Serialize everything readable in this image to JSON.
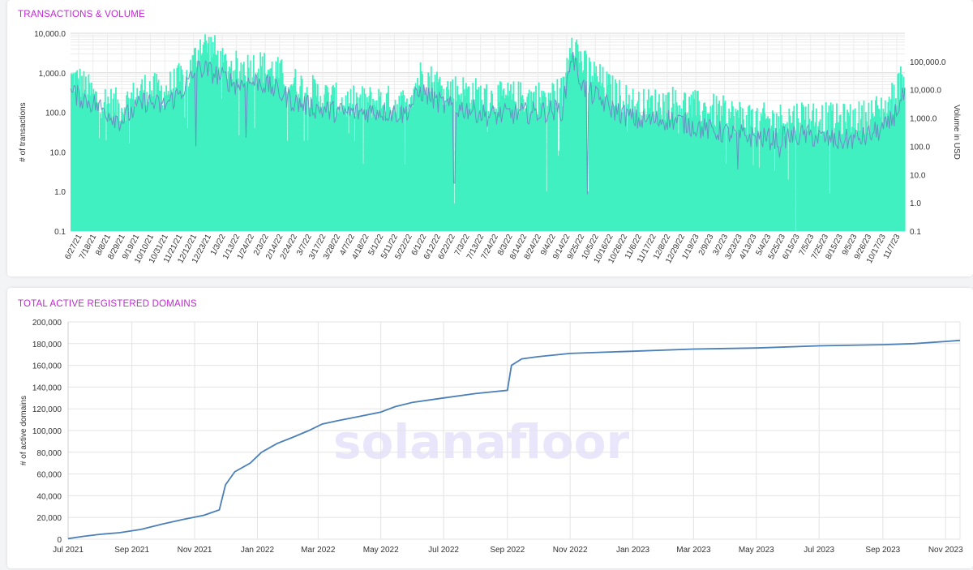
{
  "chart_data": [
    {
      "type": "bar",
      "title": "TRANSACTIONS & VOLUME",
      "ylabel": "# of transactions",
      "y2label": "Volume in USD",
      "yscale": "log",
      "ylim": [
        0.1,
        10000
      ],
      "y2scale": "log",
      "y2lim": [
        0.1,
        1000000
      ],
      "yticks": [
        "0.1",
        "1.0",
        "10.0",
        "100.0",
        "1,000.0",
        "10,000.0"
      ],
      "y2ticks": [
        "0.1",
        "1.0",
        "10.0",
        "100.0",
        "1,000.0",
        "10,000.0",
        "100,000.0"
      ],
      "xticks": [
        "6/27/21",
        "7/18/21",
        "8/8/21",
        "8/29/21",
        "9/19/21",
        "10/10/21",
        "10/31/21",
        "11/21/21",
        "12/12/21",
        "12/23/21",
        "1/3/22",
        "1/13/22",
        "1/24/22",
        "2/3/22",
        "2/14/22",
        "2/24/22",
        "3/7/22",
        "3/17/22",
        "3/28/22",
        "4/7/22",
        "4/18/22",
        "5/1/22",
        "5/11/22",
        "5/22/22",
        "6/1/22",
        "6/12/22",
        "6/22/22",
        "7/3/22",
        "7/13/22",
        "7/24/22",
        "8/3/22",
        "8/14/22",
        "8/24/22",
        "9/4/22",
        "9/14/22",
        "9/25/22",
        "10/5/22",
        "10/16/22",
        "10/26/22",
        "11/6/22",
        "11/17/22",
        "12/8/22",
        "12/29/22",
        "1/19/23",
        "2/9/23",
        "3/2/23",
        "3/23/23",
        "4/13/23",
        "5/4/23",
        "5/25/23",
        "6/15/23",
        "7/5/23",
        "7/25/23",
        "8/15/23",
        "9/5/23",
        "9/26/23",
        "10/17/23",
        "11/7/23"
      ],
      "grid": true,
      "series": [
        {
          "kind": "bar",
          "axis": "left",
          "color": "#40f0c0",
          "anchors": [
            [
              0,
              700
            ],
            [
              0.01,
              600
            ],
            [
              0.03,
              220
            ],
            [
              0.06,
              140
            ],
            [
              0.09,
              420
            ],
            [
              0.11,
              320
            ],
            [
              0.13,
              650
            ],
            [
              0.14,
              750
            ],
            [
              0.155,
              5500
            ],
            [
              0.17,
              4200
            ],
            [
              0.18,
              1600
            ],
            [
              0.2,
              1300
            ],
            [
              0.225,
              1500
            ],
            [
              0.245,
              1050
            ],
            [
              0.27,
              500
            ],
            [
              0.3,
              260
            ],
            [
              0.33,
              170
            ],
            [
              0.37,
              190
            ],
            [
              0.4,
              160
            ],
            [
              0.42,
              900
            ],
            [
              0.45,
              380
            ],
            [
              0.48,
              320
            ],
            [
              0.5,
              210
            ],
            [
              0.53,
              230
            ],
            [
              0.56,
              240
            ],
            [
              0.59,
              320
            ],
            [
              0.6,
              9500
            ],
            [
              0.615,
              1500
            ],
            [
              0.65,
              320
            ],
            [
              0.68,
              140
            ],
            [
              0.72,
              180
            ],
            [
              0.76,
              120
            ],
            [
              0.8,
              80
            ],
            [
              0.84,
              60
            ],
            [
              0.88,
              85
            ],
            [
              0.92,
              60
            ],
            [
              0.95,
              75
            ],
            [
              0.98,
              140
            ],
            [
              1.0,
              900
            ]
          ],
          "dips": [
            [
              0.14,
              40
            ],
            [
              0.22,
              40
            ],
            [
              0.35,
              5
            ],
            [
              0.46,
              0.5
            ],
            [
              0.57,
              1
            ],
            [
              0.62,
              1
            ],
            [
              0.825,
              4
            ],
            [
              0.86,
              2
            ],
            [
              0.87,
              0.1
            ],
            [
              0.91,
              0.9
            ]
          ]
        },
        {
          "kind": "line",
          "axis": "right",
          "color": "#6b8bc3",
          "anchors": [
            [
              0,
              8000
            ],
            [
              0.03,
              3000
            ],
            [
              0.06,
              800
            ],
            [
              0.09,
              4000
            ],
            [
              0.11,
              2500
            ],
            [
              0.13,
              7000
            ],
            [
              0.155,
              60000
            ],
            [
              0.17,
              40000
            ],
            [
              0.2,
              15000
            ],
            [
              0.225,
              20000
            ],
            [
              0.245,
              10000
            ],
            [
              0.27,
              3500
            ],
            [
              0.3,
              2000
            ],
            [
              0.33,
              1500
            ],
            [
              0.37,
              1800
            ],
            [
              0.4,
              1400
            ],
            [
              0.42,
              9000
            ],
            [
              0.45,
              2500
            ],
            [
              0.48,
              2000
            ],
            [
              0.5,
              1200
            ],
            [
              0.53,
              1400
            ],
            [
              0.56,
              1600
            ],
            [
              0.59,
              2000
            ],
            [
              0.6,
              180000
            ],
            [
              0.615,
              12000
            ],
            [
              0.65,
              2000
            ],
            [
              0.68,
              800
            ],
            [
              0.72,
              900
            ],
            [
              0.76,
              400
            ],
            [
              0.8,
              250
            ],
            [
              0.84,
              180
            ],
            [
              0.88,
              250
            ],
            [
              0.92,
              150
            ],
            [
              0.95,
              200
            ],
            [
              0.98,
              500
            ],
            [
              1.0,
              7000
            ]
          ],
          "dips": [
            [
              0.15,
              100
            ],
            [
              0.21,
              200
            ],
            [
              0.46,
              5
            ],
            [
              0.62,
              2
            ],
            [
              0.8,
              15
            ],
            [
              0.85,
              40
            ]
          ]
        }
      ]
    },
    {
      "type": "line",
      "title": "TOTAL ACTIVE REGISTERED DOMAINS",
      "xlabel": "",
      "ylabel": "# of active domains",
      "ylim": [
        0,
        200000
      ],
      "yticks": [
        "0",
        "20,000",
        "40,000",
        "60,000",
        "80,000",
        "100,000",
        "120,000",
        "140,000",
        "160,000",
        "180,000",
        "200,000"
      ],
      "xticks": [
        "Jul 2021",
        "Sep 2021",
        "Nov 2021",
        "Jan 2022",
        "Mar 2022",
        "May 2022",
        "Jul 2022",
        "Sep 2022",
        "Nov 2022",
        "Jan 2023",
        "Mar 2023",
        "May 2023",
        "Jul 2023",
        "Sep 2023",
        "Nov 2023"
      ],
      "grid": true,
      "series": [
        {
          "color": "#4a7fb8",
          "x": [
            "2021-07-01",
            "2021-07-15",
            "2021-08-01",
            "2021-08-20",
            "2021-09-10",
            "2021-10-01",
            "2021-10-20",
            "2021-11-10",
            "2021-11-25",
            "2021-12-01",
            "2021-12-10",
            "2021-12-25",
            "2022-01-05",
            "2022-01-20",
            "2022-02-05",
            "2022-02-20",
            "2022-03-05",
            "2022-03-20",
            "2022-04-10",
            "2022-05-01",
            "2022-05-15",
            "2022-06-01",
            "2022-07-01",
            "2022-08-01",
            "2022-09-01",
            "2022-09-05",
            "2022-09-15",
            "2022-10-01",
            "2022-11-01",
            "2022-12-01",
            "2023-01-01",
            "2023-03-01",
            "2023-05-01",
            "2023-07-01",
            "2023-09-01",
            "2023-10-01",
            "2023-11-01",
            "2023-11-15"
          ],
          "y": [
            500,
            2500,
            4500,
            6000,
            9000,
            14000,
            18000,
            22000,
            27000,
            50000,
            62000,
            70000,
            80000,
            88000,
            94000,
            100000,
            106000,
            109000,
            113000,
            117000,
            122000,
            126000,
            130000,
            134000,
            137000,
            160000,
            166000,
            168000,
            171000,
            172000,
            173000,
            175000,
            176000,
            178000,
            179000,
            180000,
            182000,
            183000
          ]
        }
      ]
    }
  ],
  "watermark": "solanafloor"
}
